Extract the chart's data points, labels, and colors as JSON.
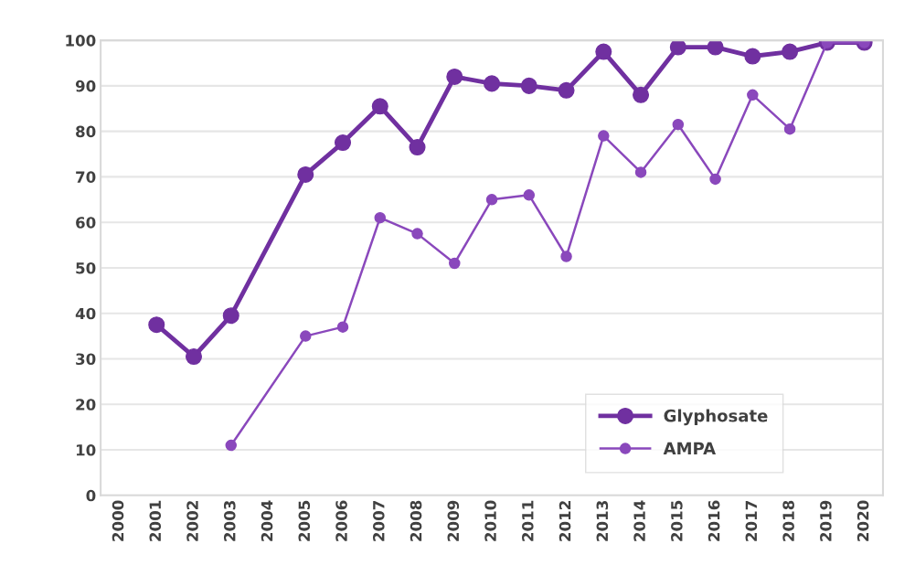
{
  "chart_data": {
    "type": "line",
    "categories": [
      "2000",
      "2001",
      "2002",
      "2003",
      "2004",
      "2005",
      "2006",
      "2007",
      "2008",
      "2009",
      "2010",
      "2011",
      "2012",
      "2013",
      "2014",
      "2015",
      "2016",
      "2017",
      "2018",
      "2019",
      "2020"
    ],
    "series": [
      {
        "name": "Glyphosate",
        "color": "#7030a0",
        "values": [
          null,
          37.5,
          30.5,
          39.5,
          null,
          70.5,
          77.5,
          85.5,
          76.5,
          92,
          90.5,
          90,
          89,
          97.5,
          88,
          98.5,
          98.5,
          96.5,
          97.5,
          99.5,
          99.5
        ]
      },
      {
        "name": "AMPA",
        "color": "#8a48bc",
        "values": [
          null,
          null,
          null,
          11,
          null,
          35,
          37,
          61,
          57.5,
          51,
          65,
          66,
          52.5,
          79,
          71,
          81.5,
          69.5,
          88,
          80.5,
          99.5,
          99.5
        ]
      }
    ],
    "ylim": [
      0,
      100
    ],
    "yticks": [
      0,
      10,
      20,
      30,
      40,
      50,
      60,
      70,
      80,
      90,
      100
    ],
    "grid": "y",
    "legend": "bottom right",
    "marker": "circle",
    "line_style": "solid"
  }
}
